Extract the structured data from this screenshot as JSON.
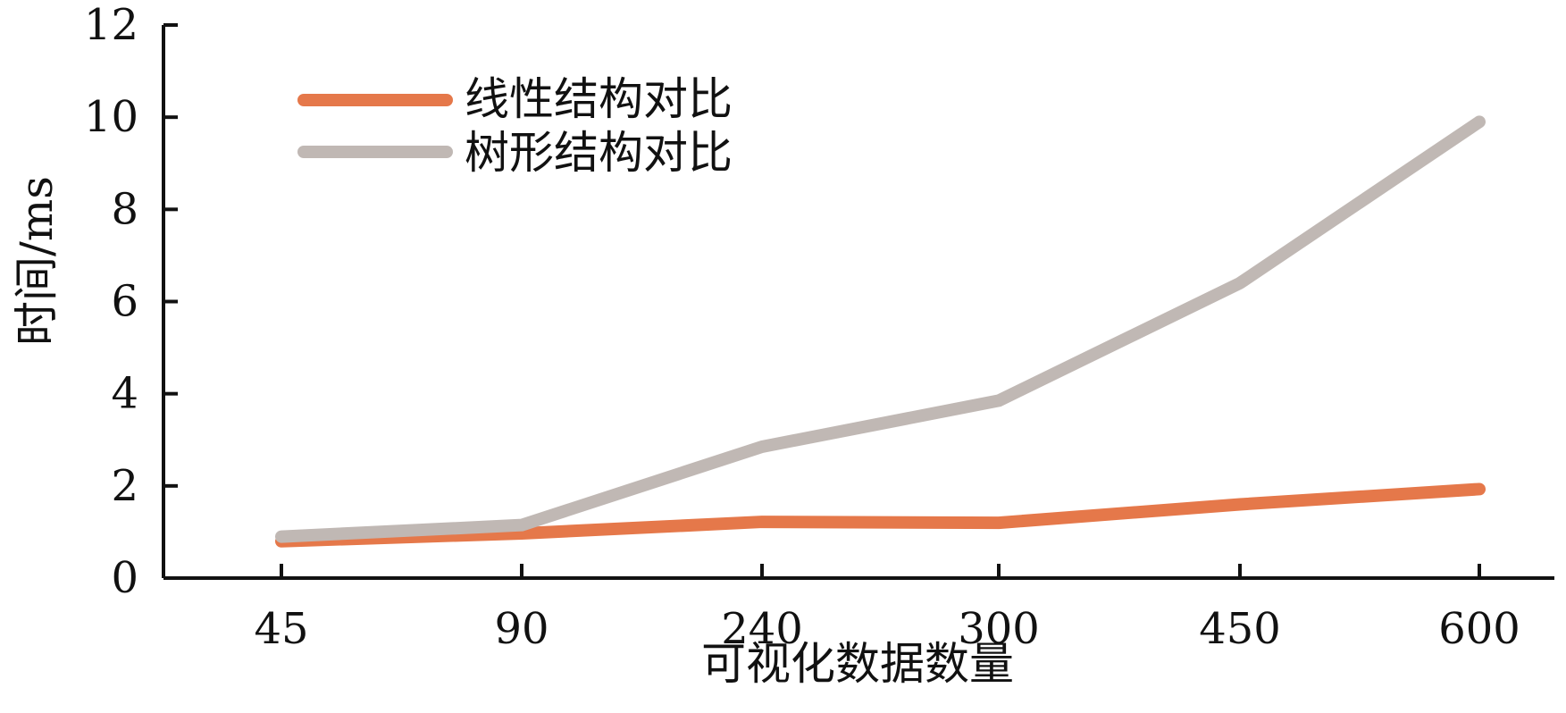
{
  "chart_data": {
    "type": "line",
    "categories": [
      "45",
      "90",
      "240",
      "300",
      "450",
      "600"
    ],
    "series": [
      {
        "name": "线性结构对比",
        "values": [
          0.8,
          0.97,
          1.22,
          1.2,
          1.6,
          1.93
        ],
        "color": "#e5784a"
      },
      {
        "name": "树形结构对比",
        "values": [
          0.9,
          1.15,
          2.85,
          3.85,
          6.4,
          9.9
        ],
        "color": "#c0b8b4"
      }
    ],
    "title": "",
    "xlabel": "可视化数据数量",
    "ylabel": "时间/ms",
    "ylim": [
      0,
      12
    ],
    "yticks": [
      "0",
      "2",
      "4",
      "6",
      "8",
      "10",
      "12"
    ],
    "grid": false,
    "legend_position": "top-left"
  }
}
